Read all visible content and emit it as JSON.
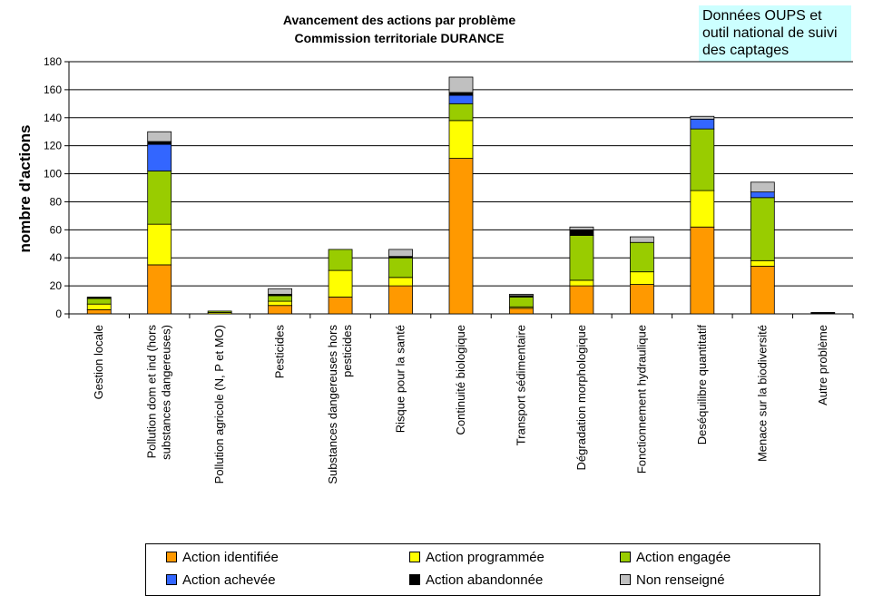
{
  "note": "Données OUPS  et outil national de suivi des captages",
  "chart_data": {
    "type": "bar",
    "stacked": true,
    "title": [
      "Avancement des actions par problème",
      "Commission territoriale DURANCE"
    ],
    "ylabel": "nombre d'actions",
    "xlabel": "",
    "ylim": [
      0,
      180
    ],
    "yticks": [
      0,
      20,
      40,
      60,
      80,
      100,
      120,
      140,
      160,
      180
    ],
    "grid": true,
    "legend_position": "bottom",
    "categories": [
      [
        "Gestion locale"
      ],
      [
        "Pollution dom et ind (hors",
        "substances dangereuses)"
      ],
      [
        "Pollution agricole (N, P et MO)"
      ],
      [
        "Pesticides"
      ],
      [
        "Substances dangereuses hors",
        "pesticides"
      ],
      [
        "Risque pour la santé"
      ],
      [
        "Continuité biologique"
      ],
      [
        "Transport sédimentaire"
      ],
      [
        "Dégradation morphologique"
      ],
      [
        "Fonctionnement hydraulique"
      ],
      [
        "Deséquilibre quantitatif"
      ],
      [
        "Menace sur la biodiversité"
      ],
      [
        "Autre problème"
      ]
    ],
    "series": [
      {
        "name": "Action identifiée",
        "color": "#ff9900",
        "values": [
          3,
          35,
          0,
          6,
          12,
          20,
          111,
          4,
          20,
          21,
          62,
          34,
          0
        ]
      },
      {
        "name": "Action programmée",
        "color": "#ffff00",
        "values": [
          4,
          29,
          1,
          3,
          19,
          6,
          27,
          1,
          4,
          9,
          26,
          4,
          0
        ]
      },
      {
        "name": "Action engagée",
        "color": "#99cc00",
        "values": [
          4,
          38,
          1,
          4,
          15,
          14,
          12,
          7,
          32,
          21,
          44,
          45,
          0
        ]
      },
      {
        "name": "Action achevée",
        "color": "#3366ff",
        "values": [
          0,
          19,
          0,
          0,
          0,
          0,
          6,
          0,
          0,
          0,
          7,
          4,
          0
        ]
      },
      {
        "name": "Action abandonnée",
        "color": "#000000",
        "values": [
          1,
          2,
          0,
          1,
          0,
          1,
          2,
          1,
          4,
          0,
          0,
          0,
          1
        ]
      },
      {
        "name": "Non renseigné",
        "color": "#c0c0c0",
        "values": [
          0,
          7,
          0,
          4,
          0,
          5,
          11,
          1,
          2,
          4,
          2,
          7,
          0
        ]
      }
    ]
  }
}
